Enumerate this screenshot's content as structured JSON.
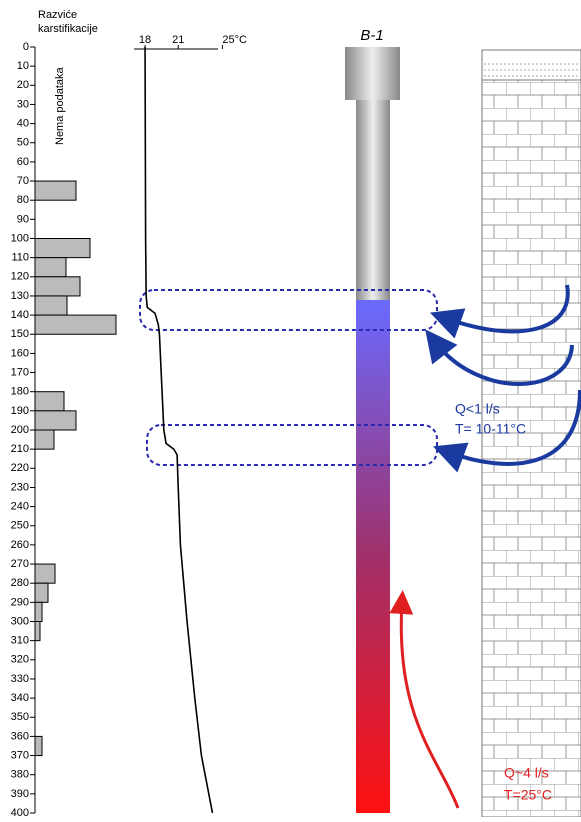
{
  "chart_data": [
    {
      "type": "bar",
      "title_lines": [
        "Razviće",
        "karstifikacije"
      ],
      "note": "Nema podataka",
      "depths": [
        70,
        100,
        110,
        120,
        130,
        140,
        180,
        190,
        200,
        270,
        280,
        290,
        300,
        360
      ],
      "values": [
        41,
        55,
        31,
        45,
        32,
        81,
        29,
        41,
        19,
        20,
        13,
        7,
        5,
        7
      ],
      "color": "#bbbbbb",
      "xlim": [
        0,
        100
      ],
      "ylim": [
        0,
        400
      ],
      "yticks": [
        0,
        10,
        20,
        30,
        40,
        50,
        60,
        70,
        80,
        90,
        100,
        110,
        120,
        130,
        140,
        150,
        160,
        170,
        180,
        190,
        200,
        210,
        220,
        230,
        240,
        250,
        260,
        270,
        280,
        290,
        300,
        310,
        320,
        330,
        340,
        350,
        360,
        370,
        380,
        390,
        400
      ]
    },
    {
      "type": "line",
      "depth": [
        0,
        100,
        130,
        136,
        139,
        145,
        150,
        200,
        207,
        210,
        213,
        230,
        260,
        300,
        340,
        370,
        400
      ],
      "values": [
        18.0,
        18.05,
        18.1,
        18.2,
        18.9,
        19.2,
        19.3,
        19.7,
        19.9,
        20.6,
        20.9,
        21.0,
        21.2,
        21.8,
        22.5,
        23.1,
        24.1
      ],
      "color": "#000000",
      "xlim": [
        17,
        24.6
      ],
      "ylim": [
        0,
        400
      ],
      "xticks": [
        18,
        21,
        {
          "value": 25,
          "label": "25°C"
        }
      ]
    }
  ],
  "borehole": {
    "label": "B-1"
  },
  "inflow_top": {
    "q": "Q<1 l/s",
    "t": "T= 10-11°C"
  },
  "inflow_bottom": {
    "q": "Q~4 l/s",
    "t": "T=25°C"
  }
}
